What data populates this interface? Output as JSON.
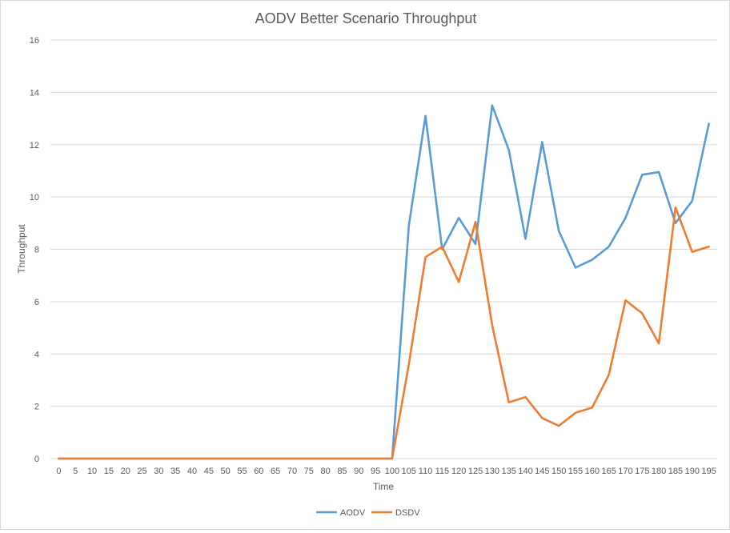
{
  "chart_data": {
    "type": "line",
    "title": "AODV Better Scenario Throughput",
    "xlabel": "Time",
    "ylabel": "Throughput",
    "ylim": [
      0,
      16
    ],
    "yticks": [
      "0",
      "2",
      "4",
      "6",
      "8",
      "10",
      "12",
      "14",
      "16"
    ],
    "categories": [
      "0",
      "5",
      "10",
      "15",
      "20",
      "25",
      "30",
      "35",
      "40",
      "45",
      "50",
      "55",
      "60",
      "65",
      "70",
      "75",
      "80",
      "85",
      "90",
      "95",
      "100",
      "105",
      "110",
      "115",
      "120",
      "125",
      "130",
      "135",
      "140",
      "145",
      "150",
      "155",
      "160",
      "165",
      "170",
      "175",
      "180",
      "185",
      "190",
      "195"
    ],
    "grid": "horizontal",
    "legend_position": "bottom",
    "series": [
      {
        "name": "AODV",
        "color": "#5b9bd5",
        "values": [
          0,
          0,
          0,
          0,
          0,
          0,
          0,
          0,
          0,
          0,
          0,
          0,
          0,
          0,
          0,
          0,
          0,
          0,
          0,
          0,
          0,
          8.9,
          13.1,
          8.0,
          9.2,
          8.2,
          13.5,
          11.8,
          8.4,
          12.1,
          8.7,
          7.3,
          7.6,
          8.1,
          9.2,
          10.85,
          10.95,
          9.0,
          9.85,
          12.8
        ]
      },
      {
        "name": "DSDV",
        "color": "#ed7d31",
        "values": [
          0,
          0,
          0,
          0,
          0,
          0,
          0,
          0,
          0,
          0,
          0,
          0,
          0,
          0,
          0,
          0,
          0,
          0,
          0,
          0,
          0,
          3.6,
          7.7,
          8.1,
          6.75,
          9.05,
          5.1,
          2.15,
          2.35,
          1.55,
          1.25,
          1.75,
          1.95,
          3.2,
          6.05,
          5.55,
          4.4,
          9.6,
          7.9,
          8.1
        ]
      }
    ]
  }
}
